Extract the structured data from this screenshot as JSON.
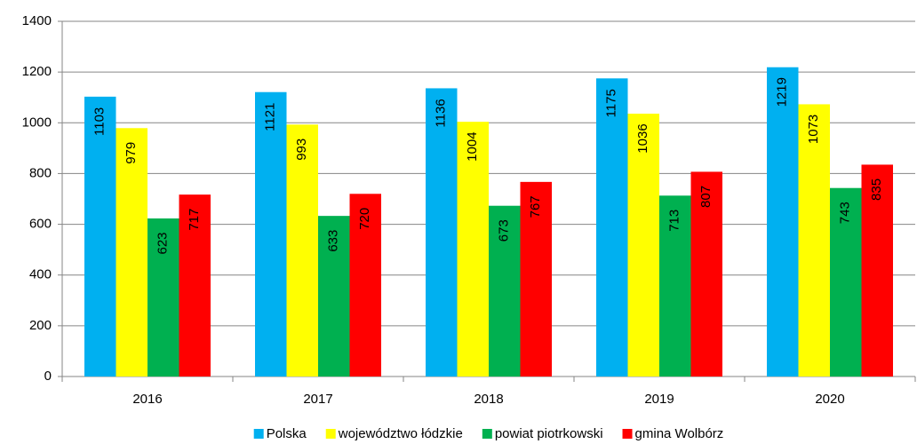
{
  "chart_data": {
    "type": "bar",
    "categories": [
      "2016",
      "2017",
      "2018",
      "2019",
      "2020"
    ],
    "series": [
      {
        "name": "Polska",
        "color": "#00b0f0",
        "values": [
          1103,
          1121,
          1136,
          1175,
          1219
        ]
      },
      {
        "name": "województwo łódzkie",
        "color": "#ffff00",
        "values": [
          979,
          993,
          1004,
          1036,
          1073
        ]
      },
      {
        "name": "powiat piotrkowski",
        "color": "#00b050",
        "values": [
          623,
          633,
          673,
          713,
          743
        ]
      },
      {
        "name": "gmina Wolbórz",
        "color": "#ff0000",
        "values": [
          717,
          720,
          767,
          807,
          835
        ]
      }
    ],
    "ylim": [
      0,
      1400
    ],
    "yticks": [
      0,
      200,
      400,
      600,
      800,
      1000,
      1200,
      1400
    ],
    "grid": true,
    "legend": "bottom"
  }
}
